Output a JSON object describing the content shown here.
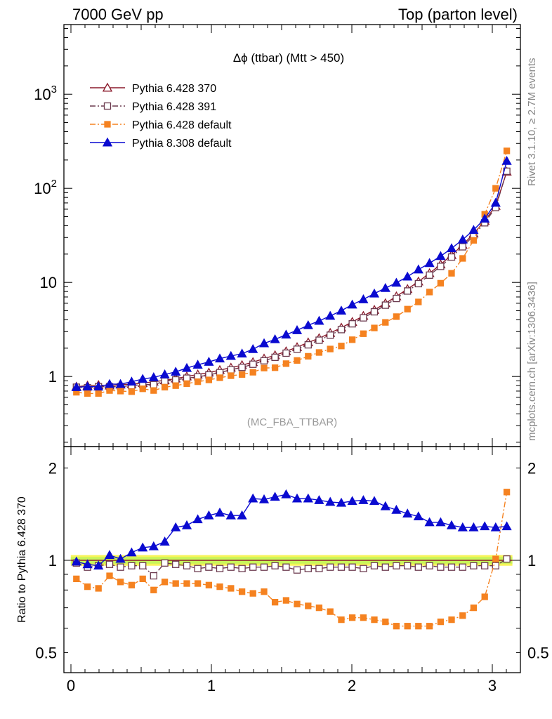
{
  "header": {
    "left": "7000 GeV pp",
    "right": "Top (parton level)"
  },
  "side_labels": {
    "rivet": "Rivet 3.1.10, ≥ 2.7M events",
    "mcplots": "mcplots.cern.ch [arXiv:1306.3436]"
  },
  "colors": {
    "p6_370": "#8b1a2b",
    "p6_391": "#6b3a4e",
    "p6_default": "#f58220",
    "p8_default": "#0a0ad0",
    "band_green": "#c8f55a",
    "band_yellow": "#f7f45a"
  },
  "chart_data": [
    {
      "type": "line",
      "title": "Δϕ (ttbar) (Mtt > 450)",
      "analysis_tag": "(MC_FBA_TTBAR)",
      "yscale": "log",
      "ylim": [
        0.18,
        5500
      ],
      "xlim": [
        -0.05,
        3.2
      ],
      "y_tick_labels": [
        "1",
        "10",
        "10^2",
        "10^3"
      ],
      "x": [
        0.039,
        0.118,
        0.196,
        0.275,
        0.353,
        0.432,
        0.511,
        0.589,
        0.668,
        0.746,
        0.825,
        0.903,
        0.982,
        1.06,
        1.139,
        1.218,
        1.296,
        1.375,
        1.453,
        1.532,
        1.61,
        1.689,
        1.767,
        1.846,
        1.925,
        2.003,
        2.082,
        2.16,
        2.239,
        2.317,
        2.396,
        2.474,
        2.553,
        2.632,
        2.71,
        2.789,
        2.867,
        2.946,
        3.024,
        3.103
      ],
      "legend_position": "top-left",
      "series": [
        {
          "name": "Pythia 6.428 370",
          "key": "p6_370",
          "marker": "triangle-open",
          "dash": "solid",
          "values": [
            0.78,
            0.8,
            0.81,
            0.8,
            0.82,
            0.83,
            0.85,
            0.88,
            0.91,
            0.95,
            1.0,
            1.05,
            1.1,
            1.17,
            1.24,
            1.32,
            1.42,
            1.55,
            1.68,
            1.85,
            2.05,
            2.3,
            2.55,
            2.9,
            3.3,
            3.8,
            4.4,
            5.1,
            6.0,
            7.1,
            8.5,
            10.2,
            12.5,
            15.5,
            19.5,
            25.0,
            33.0,
            45.0,
            65.0,
            150.0
          ]
        },
        {
          "name": "Pythia 6.428 391",
          "key": "p6_391",
          "marker": "square-open",
          "dash": "dashdot",
          "values": [
            0.77,
            0.76,
            0.78,
            0.78,
            0.78,
            0.8,
            0.82,
            0.82,
            0.89,
            0.92,
            0.96,
            0.99,
            1.04,
            1.1,
            1.18,
            1.25,
            1.35,
            1.47,
            1.6,
            1.77,
            1.95,
            2.17,
            2.43,
            2.75,
            3.15,
            3.63,
            4.2,
            4.87,
            5.73,
            6.75,
            8.1,
            9.7,
            11.95,
            14.8,
            18.6,
            23.9,
            31.5,
            43.0,
            62.5,
            152.0
          ]
        },
        {
          "name": "Pythia 6.428 default",
          "key": "p6_default",
          "marker": "square-filled",
          "dash": "dashdot",
          "values": [
            0.68,
            0.66,
            0.66,
            0.71,
            0.7,
            0.69,
            0.74,
            0.71,
            0.77,
            0.8,
            0.84,
            0.88,
            0.92,
            0.97,
            1.02,
            1.05,
            1.11,
            1.23,
            1.24,
            1.37,
            1.48,
            1.64,
            1.8,
            1.96,
            2.11,
            2.46,
            2.85,
            3.28,
            3.76,
            4.33,
            5.2,
            6.2,
            7.9,
            9.8,
            12.5,
            18.0,
            28.0,
            53.0,
            100.0,
            250.0
          ]
        },
        {
          "name": "Pythia 8.308 default",
          "key": "p8_default",
          "marker": "triangle-filled",
          "dash": "solid",
          "values": [
            0.77,
            0.78,
            0.78,
            0.83,
            0.83,
            0.88,
            0.94,
            0.98,
            1.05,
            1.12,
            1.23,
            1.33,
            1.43,
            1.55,
            1.65,
            1.75,
            1.95,
            2.25,
            2.48,
            2.78,
            3.1,
            3.5,
            3.9,
            4.4,
            5.0,
            5.8,
            6.6,
            7.6,
            8.7,
            9.9,
            11.5,
            13.7,
            16.0,
            19.0,
            23.0,
            28.5,
            36.0,
            47.5,
            70.0,
            195.0
          ]
        }
      ]
    },
    {
      "type": "line",
      "ylabel": "Ratio to Pythia 6.428 370",
      "yscale": "log",
      "ylim": [
        0.43,
        2.35
      ],
      "xlim": [
        -0.05,
        3.2
      ],
      "y_tick_labels": [
        "0.5",
        "1",
        "2"
      ],
      "x_tick_labels": [
        "0",
        "1",
        "2",
        "3"
      ],
      "reference_band": {
        "low": 0.96,
        "high": 1.04
      },
      "x": [
        0.039,
        0.118,
        0.196,
        0.275,
        0.353,
        0.432,
        0.511,
        0.589,
        0.668,
        0.746,
        0.825,
        0.903,
        0.982,
        1.06,
        1.139,
        1.218,
        1.296,
        1.375,
        1.453,
        1.532,
        1.61,
        1.689,
        1.767,
        1.846,
        1.925,
        2.003,
        2.082,
        2.16,
        2.239,
        2.317,
        2.396,
        2.474,
        2.553,
        2.632,
        2.71,
        2.789,
        2.867,
        2.946,
        3.024,
        3.103
      ],
      "series": [
        {
          "name": "Pythia 6.428 391",
          "key": "p6_391",
          "marker": "square-open",
          "dash": "dashdot",
          "values": [
            0.98,
            0.95,
            0.96,
            0.97,
            0.95,
            0.96,
            0.96,
            0.89,
            0.98,
            0.97,
            0.96,
            0.94,
            0.95,
            0.94,
            0.95,
            0.94,
            0.95,
            0.95,
            0.96,
            0.95,
            0.93,
            0.94,
            0.94,
            0.95,
            0.95,
            0.95,
            0.94,
            0.96,
            0.95,
            0.96,
            0.96,
            0.95,
            0.96,
            0.95,
            0.95,
            0.95,
            0.96,
            0.96,
            0.96,
            1.01
          ]
        },
        {
          "name": "Pythia 6.428 default",
          "key": "p6_default",
          "marker": "square-filled",
          "dash": "dashdot",
          "values": [
            0.87,
            0.82,
            0.81,
            0.89,
            0.85,
            0.83,
            0.87,
            0.8,
            0.85,
            0.84,
            0.84,
            0.84,
            0.83,
            0.82,
            0.81,
            0.79,
            0.78,
            0.79,
            0.73,
            0.74,
            0.72,
            0.71,
            0.7,
            0.68,
            0.64,
            0.65,
            0.65,
            0.64,
            0.63,
            0.61,
            0.61,
            0.61,
            0.61,
            0.63,
            0.64,
            0.66,
            0.7,
            0.76,
            1.01,
            1.67
          ]
        },
        {
          "name": "Pythia 8.308 default",
          "key": "p8_default",
          "marker": "triangle-filled",
          "dash": "solid",
          "values": [
            0.99,
            0.97,
            0.96,
            1.04,
            1.01,
            1.06,
            1.1,
            1.11,
            1.15,
            1.28,
            1.3,
            1.36,
            1.4,
            1.43,
            1.4,
            1.4,
            1.59,
            1.58,
            1.61,
            1.64,
            1.59,
            1.59,
            1.57,
            1.55,
            1.54,
            1.56,
            1.57,
            1.56,
            1.5,
            1.46,
            1.42,
            1.39,
            1.33,
            1.33,
            1.3,
            1.28,
            1.28,
            1.29,
            1.28,
            1.29
          ]
        }
      ]
    }
  ]
}
